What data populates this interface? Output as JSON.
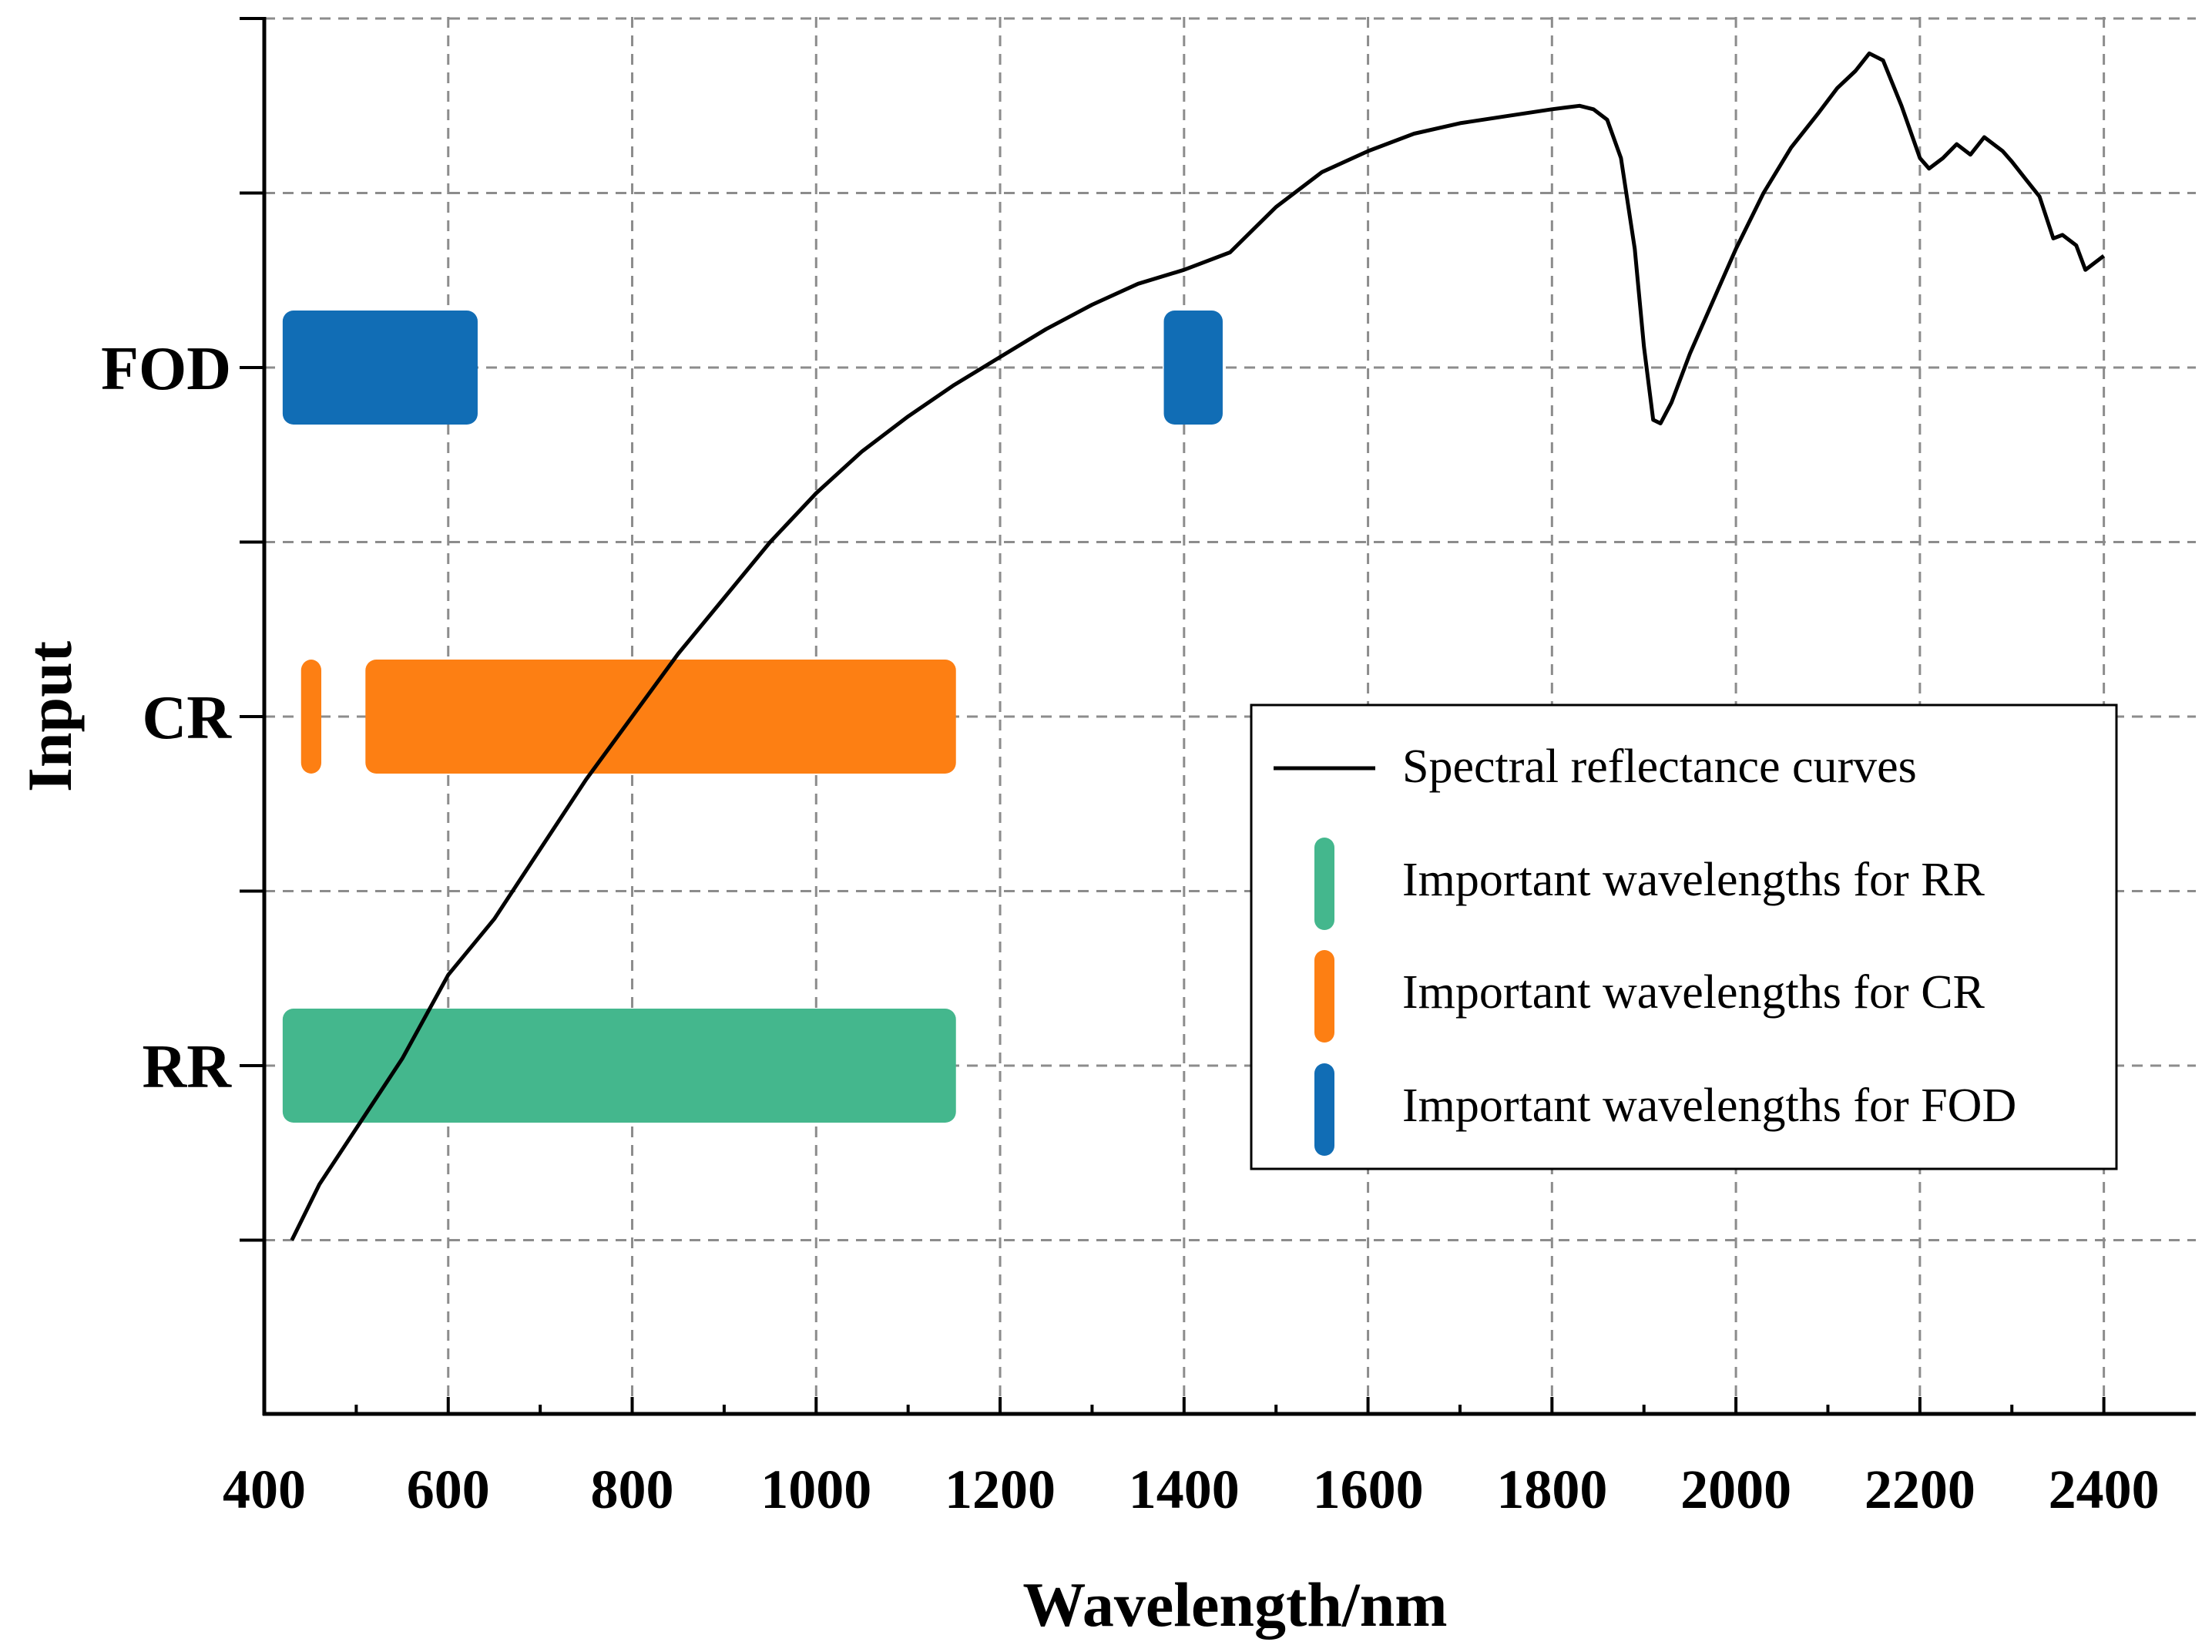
{
  "chart_data": {
    "type": "line",
    "title": "",
    "xlabel": "Wavelength/nm",
    "ylabel": "Input",
    "xlim": [
      400,
      2500
    ],
    "x_ticks": [
      400,
      600,
      800,
      1000,
      1200,
      1400,
      1600,
      1800,
      2000,
      2200,
      2400
    ],
    "x_tick_labels": [
      "400",
      "600",
      "800",
      "1000",
      "1200",
      "1400",
      "1600",
      "1800",
      "2000",
      "2200",
      "2400"
    ],
    "categories": [
      "FOD",
      "CR",
      "RR"
    ],
    "grid": true,
    "legend_position": "center-right",
    "legend": [
      {
        "label": "Spectral reflectance curves",
        "kind": "line",
        "color": "#000000"
      },
      {
        "label": "Important wavelengths for RR",
        "kind": "bar",
        "color": "#44b78d"
      },
      {
        "label": "Important wavelengths for CR",
        "kind": "bar",
        "color": "#fd7f13"
      },
      {
        "label": "Important wavelengths for FOD",
        "kind": "bar",
        "color": "#116db5"
      }
    ],
    "bands": [
      {
        "category": "FOD",
        "color": "#116db5",
        "ranges": [
          [
            420,
            632
          ],
          [
            1378,
            1442
          ]
        ]
      },
      {
        "category": "CR",
        "color": "#fd7f13",
        "ranges": [
          [
            440,
            462
          ],
          [
            510,
            1152
          ]
        ]
      },
      {
        "category": "RR",
        "color": "#44b78d",
        "ranges": [
          [
            420,
            1152
          ]
        ]
      }
    ],
    "curve": {
      "name": "Spectral reflectance curves",
      "color": "#000000",
      "y_unit": "category position (RR = 0, CR = 1, FOD = 2)",
      "x": [
        430,
        460,
        500,
        550,
        600,
        650,
        700,
        750,
        800,
        850,
        900,
        950,
        1000,
        1050,
        1100,
        1150,
        1200,
        1250,
        1300,
        1350,
        1400,
        1450,
        1500,
        1550,
        1600,
        1650,
        1700,
        1750,
        1800,
        1830,
        1845,
        1860,
        1875,
        1890,
        1900,
        1910,
        1918,
        1930,
        1950,
        1980,
        2000,
        2030,
        2060,
        2090,
        2110,
        2130,
        2145,
        2160,
        2180,
        2200,
        2210,
        2225,
        2240,
        2255,
        2270,
        2290,
        2300,
        2315,
        2330,
        2345,
        2355,
        2370,
        2380,
        2400
      ],
      "y": [
        -0.5,
        -0.34,
        -0.18,
        0.02,
        0.26,
        0.42,
        0.62,
        0.82,
        1.0,
        1.18,
        1.34,
        1.5,
        1.64,
        1.76,
        1.86,
        1.95,
        2.03,
        2.11,
        2.18,
        2.24,
        2.28,
        2.33,
        2.46,
        2.56,
        2.62,
        2.67,
        2.7,
        2.72,
        2.74,
        2.75,
        2.74,
        2.71,
        2.6,
        2.34,
        2.06,
        1.85,
        1.84,
        1.9,
        2.04,
        2.22,
        2.34,
        2.5,
        2.63,
        2.73,
        2.8,
        2.85,
        2.9,
        2.88,
        2.75,
        2.6,
        2.57,
        2.6,
        2.64,
        2.61,
        2.66,
        2.62,
        2.59,
        2.54,
        2.49,
        2.37,
        2.38,
        2.35,
        2.28,
        2.32
      ]
    }
  }
}
